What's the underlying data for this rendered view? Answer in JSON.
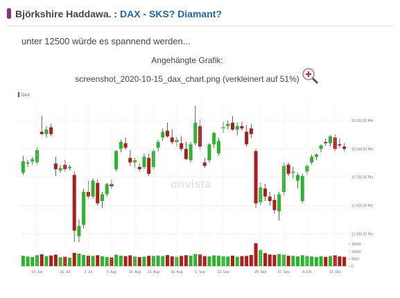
{
  "post": {
    "author": "Björkshire Haddawa.",
    "separator": ":",
    "title": "DAX - SKS? Diamant?",
    "body": "unter 12500 würde es spannend werden...",
    "attachment_label": "Angehängte Grafik:",
    "attachment_caption": "screenshot_2020-10-15_dax_chart.png (verkleinert auf 51%)"
  },
  "chart_data": {
    "type": "candlestick",
    "legend": "DAX",
    "watermark": "onvista",
    "up_color": "#2cb52c",
    "down_color": "#b01c1c",
    "legend_color": "#1f66b8",
    "categories": [
      null,
      null,
      null,
      "19. Jun",
      null,
      null,
      null,
      null,
      null,
      "26. Jul",
      null,
      null,
      null,
      null,
      "3. Jul",
      null,
      null,
      null,
      null,
      "9. Aug",
      null,
      null,
      null,
      null,
      "16. Aug",
      null,
      null,
      null,
      "23. Aug",
      null,
      null,
      null,
      null,
      "30. Aug",
      null,
      null,
      null,
      null,
      "6. Sep",
      null,
      null,
      null,
      null,
      "13. Sep",
      null,
      null,
      null,
      null,
      null,
      null,
      null,
      "20. Sep",
      null,
      null,
      null,
      null,
      "27. Sep",
      null,
      null,
      null,
      null,
      "4. Okt",
      null,
      null,
      null,
      null,
      null,
      "13. Okt",
      null,
      null
    ],
    "open": [
      12790,
      12870,
      12890,
      12880,
      13150,
      13130,
      13190,
      12870,
      12810,
      12860,
      12830,
      12770,
      12230,
      12330,
      12620,
      12580,
      12700,
      12540,
      12600,
      12690,
      12820,
      13000,
      13050,
      12920,
      12880,
      12840,
      12840,
      12920,
      12840,
      13010,
      13100,
      13160,
      13100,
      13060,
      13050,
      13000,
      12900,
      13050,
      13200,
      12880,
      12900,
      13040,
      12960,
      13180,
      13200,
      13230,
      13170,
      13200,
      13150,
      13180,
      12980,
      12530,
      12650,
      12580,
      12550,
      12450,
      12620,
      12860,
      12790,
      12720,
      12540,
      12800,
      12880,
      12930,
      13000,
      13060,
      13050,
      13100,
      13040,
      13020
    ],
    "high": [
      12940,
      12900,
      12930,
      13010,
      13290,
      13200,
      13220,
      12930,
      12860,
      12900,
      12860,
      12800,
      12380,
      12650,
      12720,
      12740,
      12730,
      12620,
      12700,
      12730,
      12990,
      13080,
      13100,
      12990,
      12920,
      12870,
      12960,
      12960,
      13000,
      13080,
      13180,
      13230,
      13170,
      13110,
      13110,
      13060,
      13060,
      13380,
      13260,
      12920,
      13050,
      13150,
      13100,
      13240,
      13250,
      13290,
      13230,
      13240,
      13210,
      13220,
      13000,
      12700,
      12690,
      12620,
      12600,
      12620,
      12880,
      12880,
      12840,
      12790,
      12780,
      12860,
      12950,
      12960,
      13040,
      13090,
      13120,
      13130,
      13090,
      13050
    ],
    "low": [
      12770,
      12840,
      12860,
      12860,
      13120,
      13100,
      13110,
      12760,
      12790,
      12800,
      12810,
      12180,
      12180,
      12300,
      12560,
      12560,
      12500,
      12480,
      12580,
      12650,
      12800,
      12970,
      12990,
      12850,
      12840,
      12800,
      12820,
      12760,
      12820,
      12980,
      13070,
      13100,
      13040,
      13020,
      12980,
      12900,
      12880,
      13030,
      12990,
      12830,
      12880,
      13010,
      12940,
      13140,
      13170,
      13160,
      13120,
      13160,
      13020,
      13100,
      12480,
      12500,
      12540,
      12500,
      12430,
      12370,
      12590,
      12760,
      12740,
      12650,
      12520,
      12770,
      12860,
      12900,
      12970,
      13030,
      13020,
      12980,
      13010,
      12980
    ],
    "close": [
      12890,
      12880,
      12910,
      12990,
      13130,
      13170,
      13130,
      12820,
      12830,
      12820,
      12840,
      12280,
      12320,
      12620,
      12580,
      12720,
      12520,
      12600,
      12690,
      12670,
      12980,
      13060,
      13010,
      12880,
      12900,
      12820,
      12930,
      12780,
      12980,
      13060,
      13150,
      13110,
      13060,
      13080,
      13000,
      12910,
      13040,
      13230,
      13020,
      12850,
      13040,
      13140,
      13070,
      13190,
      13220,
      13170,
      13200,
      13180,
      13040,
      13130,
      12520,
      12660,
      12580,
      12540,
      12460,
      12600,
      12850,
      12780,
      12800,
      12770,
      12760,
      12850,
      12930,
      12950,
      13030,
      13050,
      13110,
      13000,
      13030,
      13000
    ],
    "volume": [
      7000,
      6500,
      6200,
      7500,
      8000,
      6800,
      7200,
      7800,
      6000,
      6400,
      5800,
      9000,
      8500,
      7600,
      7000,
      6900,
      7400,
      6600,
      6200,
      5900,
      7800,
      7100,
      6800,
      7300,
      6500,
      6100,
      6400,
      7000,
      6900,
      7200,
      6800,
      7500,
      6600,
      6300,
      6900,
      7400,
      7100,
      8200,
      7900,
      6800,
      6600,
      7300,
      7000,
      6700,
      6500,
      7100,
      6400,
      6800,
      6900,
      7600,
      15500,
      11000,
      8800,
      7900,
      7600,
      8200,
      7800,
      7000,
      6900,
      6600,
      7400,
      6800,
      6500,
      6200,
      6700,
      6300,
      6800,
      7400,
      6600,
      6300
    ],
    "ylim": [
      12150,
      13420
    ],
    "yticks": [
      {
        "value": 12250,
        "label": "12.250,00 Pkt."
      },
      {
        "value": 12500,
        "label": "12.500,00 Pkt."
      },
      {
        "value": 12750,
        "label": "12.750,00 Pkt."
      },
      {
        "value": 13000,
        "label": "13.000,00 Pkt."
      },
      {
        "value": 13250,
        "label": "13.250,00 Pkt."
      }
    ],
    "y2lim": [
      0,
      16000
    ],
    "y2ticks": [
      0,
      5000,
      10000,
      15000
    ],
    "grid": true
  }
}
